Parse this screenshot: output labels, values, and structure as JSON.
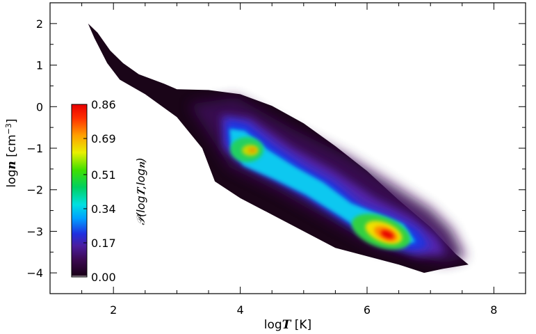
{
  "chart_data": {
    "type": "heatmap",
    "title": "",
    "xlabel_pre": "log",
    "xlabel_var": "T",
    "xlabel_unit": "[K]",
    "ylabel_pre": "log",
    "ylabel_var": "n",
    "ylabel_unit": "[cm",
    "ylabel_exp": "−3",
    "ylabel_close": "]",
    "xlim": [
      1.0,
      8.5
    ],
    "ylim": [
      -4.5,
      2.5
    ],
    "x_ticks": [
      2,
      4,
      6,
      8
    ],
    "x_tick_labels": [
      "2",
      "4",
      "6",
      "8"
    ],
    "y_ticks": [
      2,
      1,
      0,
      -1,
      -2,
      -3,
      -4
    ],
    "y_tick_labels": [
      "2",
      "1",
      "0",
      "−1",
      "−2",
      "−3",
      "−4"
    ],
    "colorbar": {
      "label": "𝒫(log𝑻,log𝒏)",
      "min": 0.0,
      "max": 0.86,
      "ticks": [
        0.86,
        0.69,
        0.51,
        0.34,
        0.17,
        0.0
      ],
      "tick_labels": [
        "0.86",
        "0.69",
        "0.51",
        "0.34",
        "0.17",
        "0.00"
      ],
      "colormap": "rainbow"
    },
    "distribution_outline": [
      [
        1.6,
        2.0
      ],
      [
        1.75,
        1.78
      ],
      [
        1.95,
        1.35
      ],
      [
        2.15,
        1.05
      ],
      [
        2.4,
        0.78
      ],
      [
        2.8,
        0.55
      ],
      [
        3.0,
        0.42
      ],
      [
        3.5,
        0.4
      ],
      [
        4.0,
        0.3
      ],
      [
        4.5,
        0.02
      ],
      [
        5.0,
        -0.4
      ],
      [
        5.5,
        -0.95
      ],
      [
        6.0,
        -1.55
      ],
      [
        6.5,
        -2.25
      ],
      [
        7.0,
        -2.9
      ],
      [
        7.4,
        -3.55
      ],
      [
        7.6,
        -3.8
      ],
      [
        7.2,
        -3.9
      ],
      [
        6.9,
        -4.0
      ],
      [
        6.5,
        -3.8
      ],
      [
        6.0,
        -3.6
      ],
      [
        5.5,
        -3.4
      ],
      [
        5.0,
        -3.0
      ],
      [
        4.5,
        -2.6
      ],
      [
        4.0,
        -2.2
      ],
      [
        3.6,
        -1.8
      ],
      [
        3.4,
        -1.0
      ],
      [
        3.0,
        -0.25
      ],
      [
        2.5,
        0.3
      ],
      [
        2.1,
        0.65
      ],
      [
        1.9,
        1.05
      ],
      [
        1.7,
        1.65
      ],
      [
        1.6,
        2.0
      ]
    ],
    "peaks": [
      {
        "logT": 6.2,
        "logn": -3.0,
        "density": 0.86
      },
      {
        "logT": 4.1,
        "logn": -1.1,
        "density": 0.66
      }
    ],
    "ridge": [
      {
        "logT": 4.0,
        "logn": -1.05,
        "density": 0.55
      },
      {
        "logT": 4.6,
        "logn": -1.55,
        "density": 0.4
      },
      {
        "logT": 5.2,
        "logn": -2.15,
        "density": 0.37
      },
      {
        "logT": 5.8,
        "logn": -2.75,
        "density": 0.5
      },
      {
        "logT": 6.2,
        "logn": -3.0,
        "density": 0.86
      },
      {
        "logT": 6.6,
        "logn": -3.35,
        "density": 0.3
      }
    ]
  }
}
